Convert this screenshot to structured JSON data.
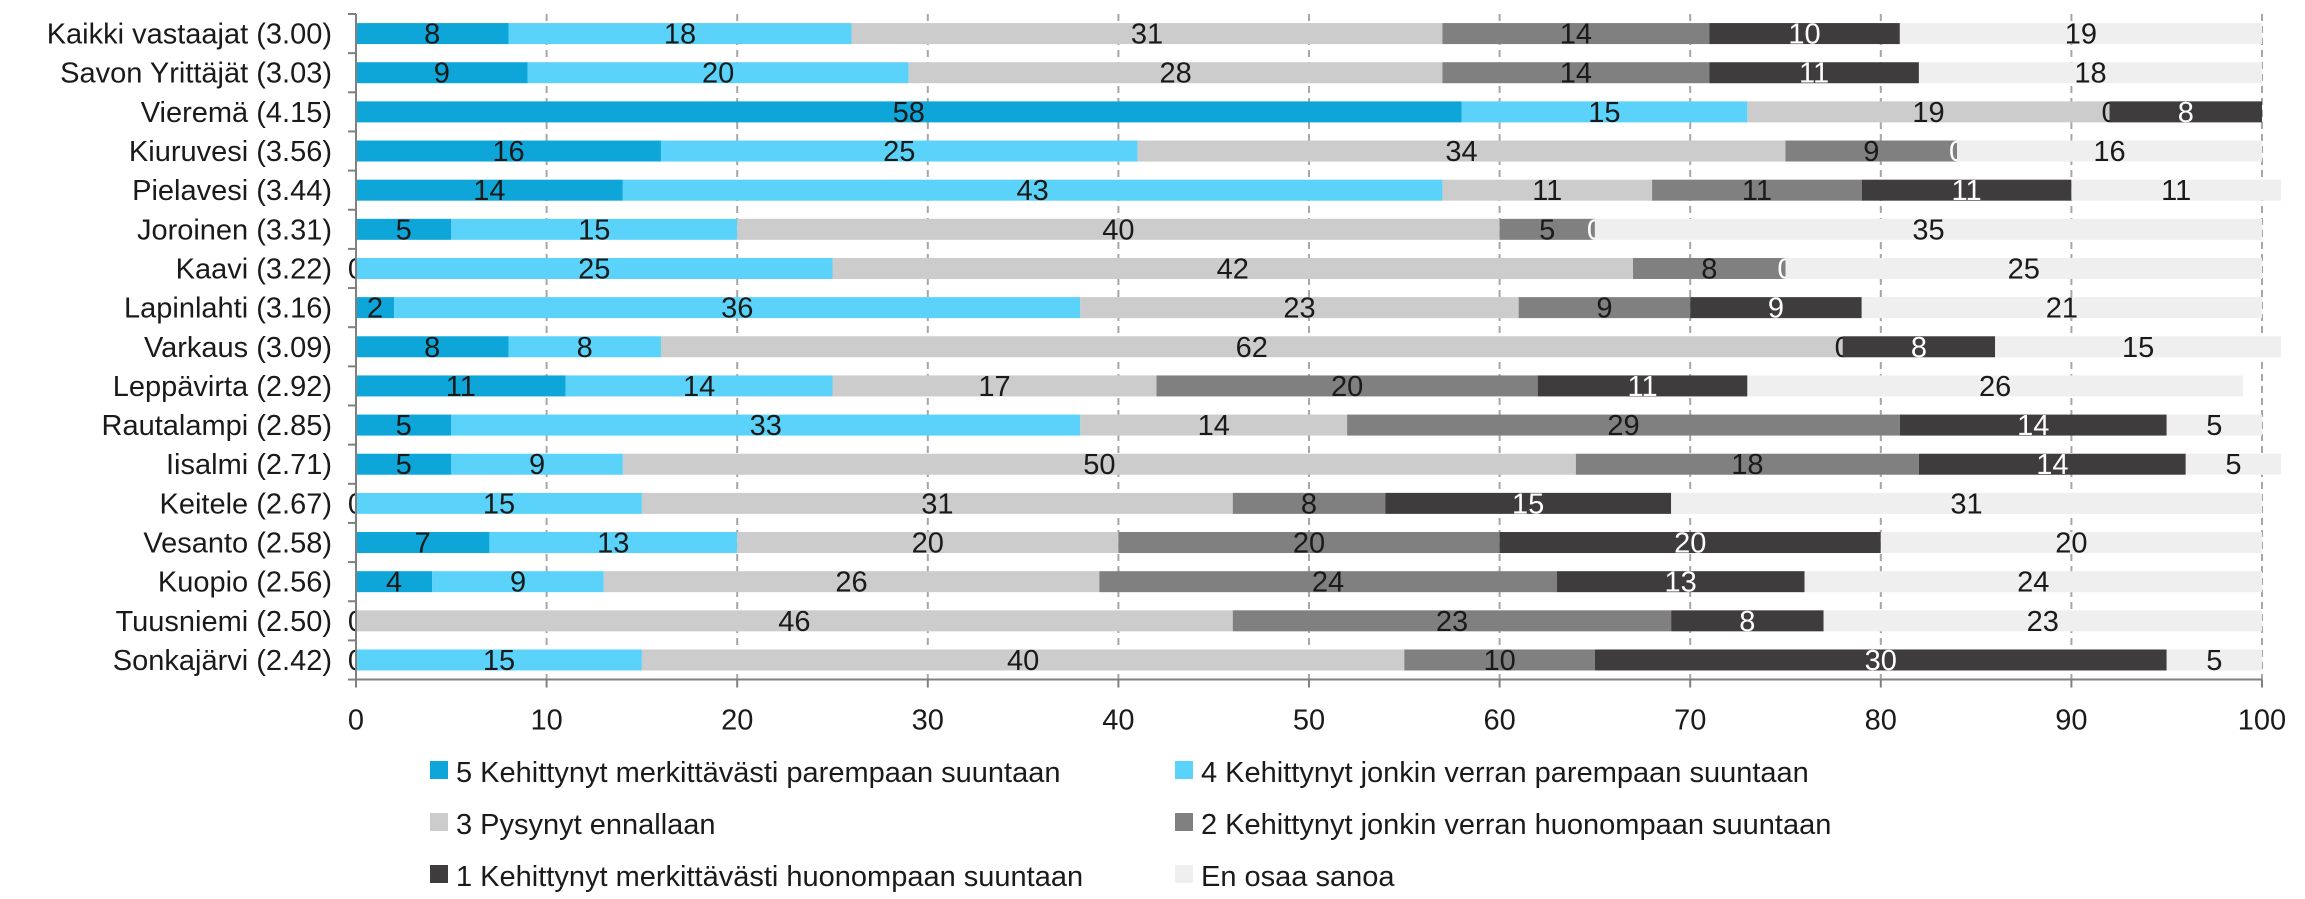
{
  "chart_data": {
    "type": "bar",
    "orientation": "horizontal",
    "stacked": true,
    "categories": [
      "Kaikki vastaajat (3.00)",
      "Savon Yrittäjät (3.03)",
      "Vieremä (4.15)",
      "Kiuruvesi (3.56)",
      "Pielavesi (3.44)",
      "Joroinen (3.31)",
      "Kaavi (3.22)",
      "Lapinlahti (3.16)",
      "Varkaus (3.09)",
      "Leppävirta (2.92)",
      "Rautalampi (2.85)",
      "Iisalmi (2.71)",
      "Keitele (2.67)",
      "Vesanto (2.58)",
      "Kuopio (2.56)",
      "Tuusniemi (2.50)",
      "Sonkajärvi (2.42)"
    ],
    "series": [
      {
        "name": "5 Kehittynyt merkittävästi parempaan suuntaan",
        "color": "#0ea5d9",
        "label_color": "#1a1a1a",
        "values": [
          8,
          9,
          58,
          16,
          14,
          5,
          0,
          2,
          8,
          11,
          5,
          5,
          0,
          7,
          4,
          0,
          0
        ]
      },
      {
        "name": "4 Kehittynyt jonkin verran parempaan suuntaan",
        "color": "#5ad2fa",
        "label_color": "#1a1a1a",
        "values": [
          18,
          20,
          15,
          25,
          43,
          15,
          25,
          36,
          8,
          14,
          33,
          9,
          15,
          13,
          9,
          0,
          15
        ]
      },
      {
        "name": "3 Pysynyt ennallaan",
        "color": "#cccccc",
        "label_color": "#1a1a1a",
        "values": [
          31,
          28,
          19,
          34,
          11,
          40,
          42,
          23,
          62,
          17,
          14,
          50,
          31,
          20,
          26,
          46,
          40
        ]
      },
      {
        "name": "2 Kehittynyt jonkin verran huonompaan suuntaan",
        "color": "#808080",
        "label_color": "#1a1a1a",
        "values": [
          14,
          14,
          0,
          9,
          11,
          5,
          8,
          9,
          0,
          20,
          29,
          18,
          8,
          20,
          24,
          23,
          10
        ]
      },
      {
        "name": "1 Kehittynyt merkittävästi huonompaan suuntaan",
        "color": "#3f3c3d",
        "label_color": "#ffffff",
        "values": [
          10,
          11,
          8,
          0,
          11,
          0,
          0,
          9,
          8,
          11,
          14,
          14,
          15,
          20,
          13,
          8,
          30
        ]
      },
      {
        "name": "En osaa sanoa",
        "color": "#efefef",
        "label_color": "#1a1a1a",
        "values": [
          19,
          18,
          0,
          16,
          11,
          35,
          25,
          21,
          15,
          26,
          5,
          5,
          31,
          20,
          24,
          23,
          5
        ]
      }
    ],
    "data_labels": [
      [
        "8",
        "18",
        "31",
        "14",
        "10",
        "19"
      ],
      [
        "9",
        "20",
        "28",
        "14",
        "11",
        "18"
      ],
      [
        "58",
        "15",
        "19",
        "0",
        "8",
        ""
      ],
      [
        "16",
        "25",
        "34",
        "9",
        "0",
        "16"
      ],
      [
        "14",
        "43",
        "11",
        "11",
        "11",
        "11"
      ],
      [
        "5",
        "15",
        "40",
        "5",
        "0",
        "35"
      ],
      [
        "0",
        "25",
        "42",
        "8",
        "0",
        "25"
      ],
      [
        "2",
        "36",
        "23",
        "9",
        "9",
        "21"
      ],
      [
        "8",
        "8",
        "62",
        "0",
        "8",
        "15"
      ],
      [
        "11",
        "14",
        "17",
        "20",
        "11",
        "26"
      ],
      [
        "5",
        "33",
        "14",
        "29",
        "14",
        "5"
      ],
      [
        "5",
        "9",
        "50",
        "18",
        "14",
        "5"
      ],
      [
        "0",
        "15",
        "31",
        "8",
        "15",
        "31"
      ],
      [
        "7",
        "13",
        "20",
        "20",
        "20",
        "20"
      ],
      [
        "4",
        "9",
        "26",
        "24",
        "13",
        "24"
      ],
      [
        "0",
        "",
        "46",
        "23",
        "8",
        "23"
      ],
      [
        "0",
        "15",
        "40",
        "10",
        "30",
        "5"
      ]
    ],
    "xlim": [
      0,
      100
    ],
    "x_ticks": [
      0,
      10,
      20,
      30,
      40,
      50,
      60,
      70,
      80,
      90,
      100
    ],
    "grid": "vertical dashed",
    "legend": "bottom",
    "title": "",
    "xlabel": "",
    "ylabel": ""
  }
}
